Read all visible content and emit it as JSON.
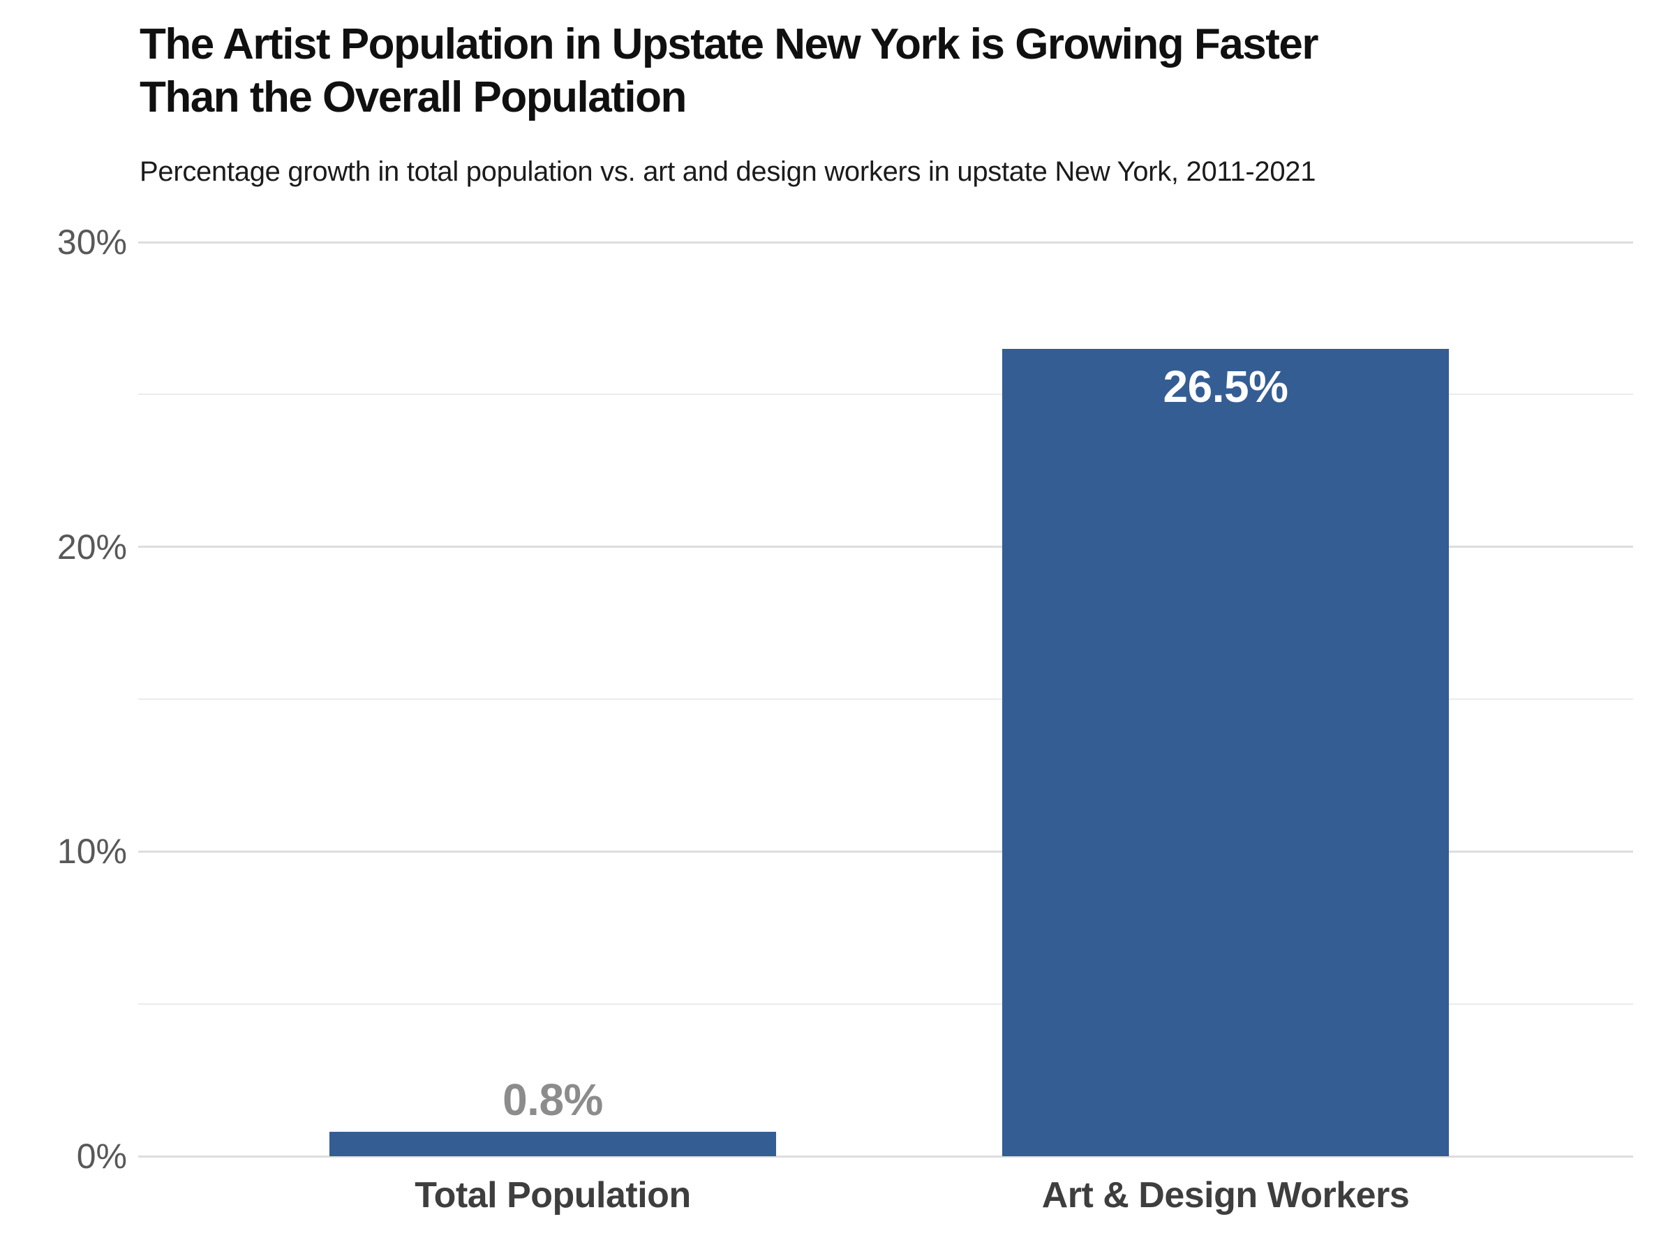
{
  "header": {
    "title": "The Artist Population in Upstate New York is Growing Faster Than the Overall Population",
    "title_lines": [
      "The Artist Population in Upstate New York is Growing Faster",
      "Than the Overall Population"
    ],
    "subtitle": "Percentage growth in total population vs. art and design workers in upstate New York, 2011-2021"
  },
  "colors": {
    "background": "#FFFFFF",
    "bar": "#345D94",
    "value_label_above": "#8C8C8C",
    "value_label_inside": "#FFFFFF",
    "ytick_label": "#585858",
    "category_label": "#3E3E3E",
    "gridline_major": "#DDDDDD",
    "gridline_minor": "#EBEBEB",
    "title_text": "#101010"
  },
  "chart_data": {
    "type": "bar",
    "title": "The Artist Population in Upstate New York is Growing Faster Than the Overall Population",
    "subtitle": "Percentage growth in total population vs. art and design workers in upstate New York, 2011-2021",
    "categories": [
      "Total Population",
      "Art & Design Workers"
    ],
    "values": [
      0.8,
      26.5
    ],
    "value_labels": [
      "0.8%",
      "26.5%"
    ],
    "value_label_placement": [
      "above",
      "inside"
    ],
    "xlabel": "",
    "ylabel": "",
    "ylim": [
      0,
      30
    ],
    "yticks": [
      0,
      10,
      20,
      30
    ],
    "ytick_labels": [
      "0%",
      "10%",
      "20%",
      "30%"
    ],
    "gridlines": [
      0,
      5,
      10,
      15,
      20,
      25,
      30
    ],
    "grid": true,
    "legend": false
  }
}
